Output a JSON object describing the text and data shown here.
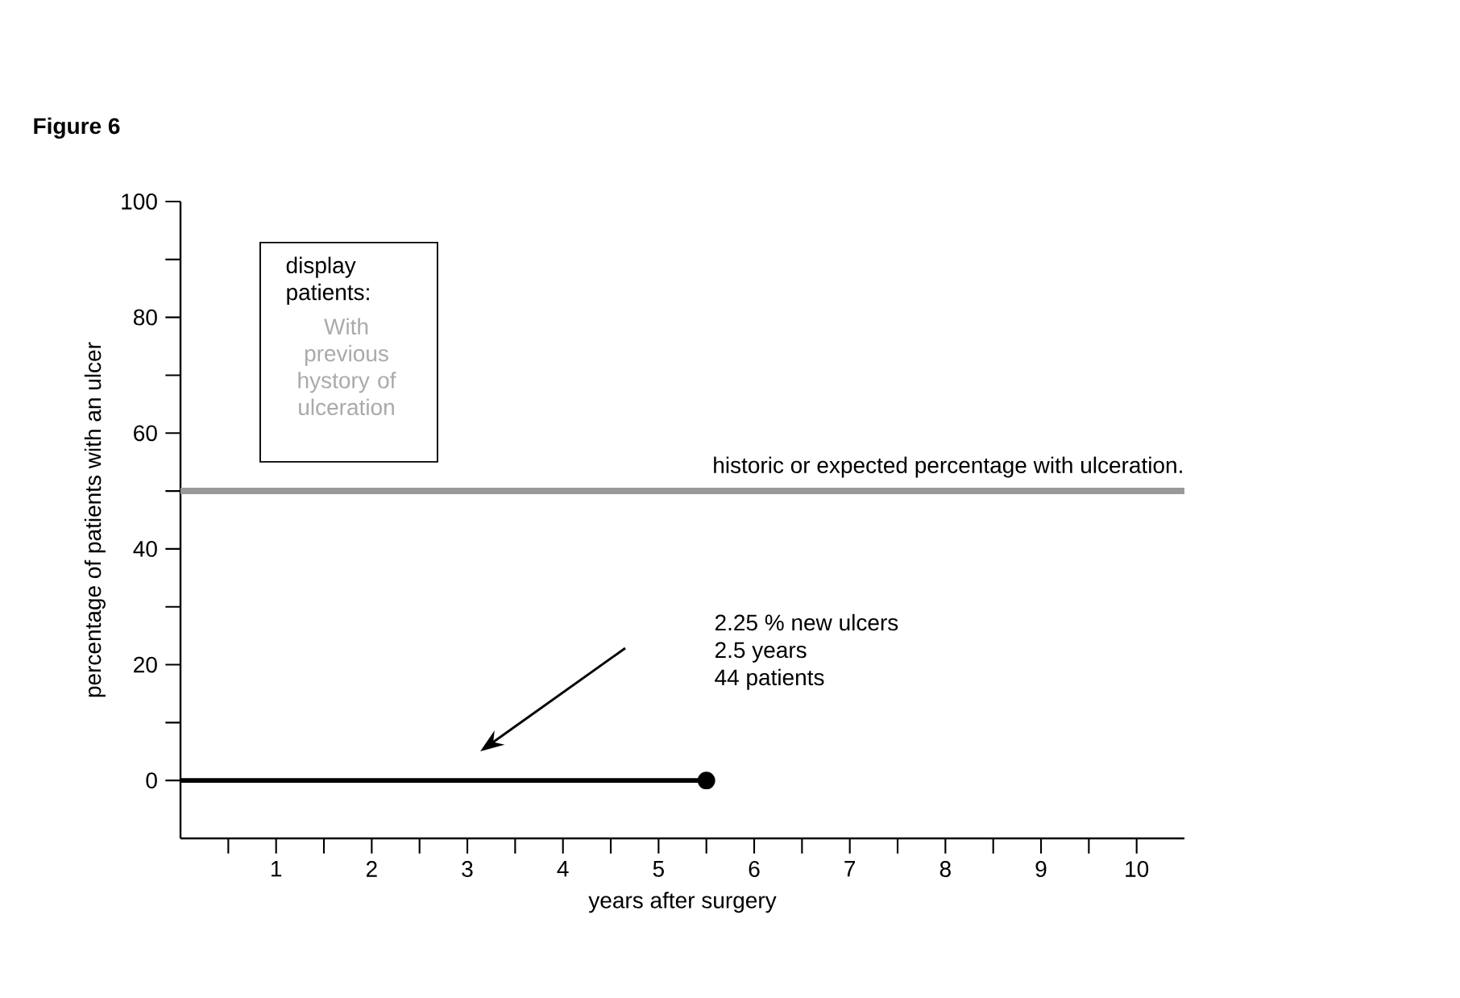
{
  "chart_data": {
    "type": "line",
    "title": "Figure 6",
    "xlabel": "years after surgery",
    "ylabel": "percentage of patients with an ulcer",
    "series": [
      {
        "color": "#000000",
        "x": [
          0,
          5.5
        ],
        "values": [
          0,
          0
        ]
      }
    ],
    "xlim": [
      0,
      10.5
    ],
    "ylim": [
      -10,
      100
    ],
    "xticks": [
      {
        "value": 0.5,
        "label": null
      },
      1,
      {
        "value": 1.5,
        "label": null
      },
      2,
      {
        "value": 2.5,
        "label": null
      },
      3,
      {
        "value": 3.5,
        "label": null
      },
      4,
      {
        "value": 4.5,
        "label": null
      },
      5,
      {
        "value": 5.5,
        "label": null
      },
      6,
      {
        "value": 6.5,
        "label": null
      },
      7,
      {
        "value": 7.5,
        "label": null
      },
      8,
      {
        "value": 8.5,
        "label": null
      },
      9,
      {
        "value": 9.5,
        "label": null
      },
      10
    ],
    "yticks": [
      0,
      {
        "value": 10,
        "label": null
      },
      20,
      {
        "value": 30,
        "label": null
      },
      40,
      {
        "value": 50,
        "label": null
      },
      60,
      {
        "value": 70,
        "label": null
      },
      80,
      {
        "value": 90,
        "label": null
      },
      100
    ],
    "ref_lines": [
      {
        "axis": "y",
        "value": 50,
        "label": "historic or expected percentage with ulceration.",
        "color": "#999999"
      }
    ],
    "annotations": [
      "display patients:",
      "With previous hystory of ulceration",
      "2.25 % new ulcers",
      "2.5 years",
      "44  patients"
    ],
    "marker": "circle",
    "line_style": "solid"
  }
}
